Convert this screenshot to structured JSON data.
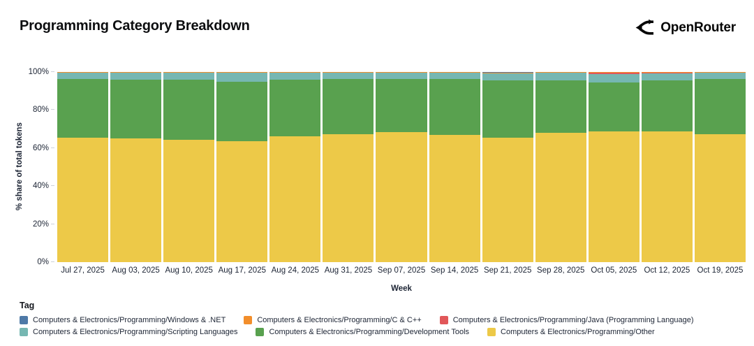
{
  "header": {
    "title": "Programming Category Breakdown",
    "brand": "OpenRouter"
  },
  "chart_data": {
    "type": "bar",
    "stacked": true,
    "title": "Programming Category Breakdown",
    "xlabel": "Week",
    "ylabel": "% share of total tokens",
    "ylim": [
      0,
      100
    ],
    "grid": false,
    "legend_title": "Tag",
    "legend_position": "bottom",
    "y_ticks": [
      "0%",
      "20%",
      "40%",
      "60%",
      "80%",
      "100%"
    ],
    "categories": [
      "Jul 27, 2025",
      "Aug 03, 2025",
      "Aug 10, 2025",
      "Aug 17, 2025",
      "Aug 24, 2025",
      "Aug 31, 2025",
      "Sep 07, 2025",
      "Sep 14, 2025",
      "Sep 21, 2025",
      "Sep 28, 2025",
      "Oct 05, 2025",
      "Oct 12, 2025",
      "Oct 19, 2025"
    ],
    "series": [
      {
        "name": "Computers & Electronics/Programming/Windows & .NET",
        "color": "#4e79a7",
        "values": [
          0.1,
          0.1,
          0.1,
          0.1,
          0.1,
          0.1,
          0.1,
          0.1,
          0.2,
          0.1,
          0.1,
          0.1,
          0.1
        ]
      },
      {
        "name": "Computers & Electronics/Programming/C & C++",
        "color": "#f28e2b",
        "values": [
          0.2,
          0.3,
          0.3,
          0.3,
          0.2,
          0.2,
          0.2,
          0.2,
          0.5,
          0.3,
          0.1,
          0.1,
          0.2
        ]
      },
      {
        "name": "Computers & Electronics/Programming/Java (Programming Language)",
        "color": "#e15759",
        "values": [
          0.1,
          0.1,
          0.1,
          0.1,
          0.1,
          0.1,
          0.1,
          0.1,
          0.2,
          0.1,
          0.8,
          0.6,
          0.1
        ]
      },
      {
        "name": "Computers & Electronics/Programming/Scripting Languages",
        "color": "#76b7b2",
        "values": [
          3.4,
          3.6,
          3.6,
          4.7,
          3.5,
          3.3,
          3.4,
          3.3,
          3.5,
          3.9,
          4.4,
          3.7,
          3.3
        ]
      },
      {
        "name": "Computers & Electronics/Programming/Development Tools",
        "color": "#59a14f",
        "values": [
          30.7,
          30.9,
          31.6,
          31.1,
          29.9,
          29.1,
          27.8,
          29.3,
          30.1,
          27.6,
          26.0,
          26.6,
          29.0
        ]
      },
      {
        "name": "Computers & Electronics/Programming/Other",
        "color": "#edc948",
        "values": [
          65.5,
          65.0,
          64.3,
          63.7,
          66.2,
          67.2,
          68.4,
          67.0,
          65.5,
          68.0,
          68.6,
          68.9,
          67.3
        ]
      }
    ]
  }
}
